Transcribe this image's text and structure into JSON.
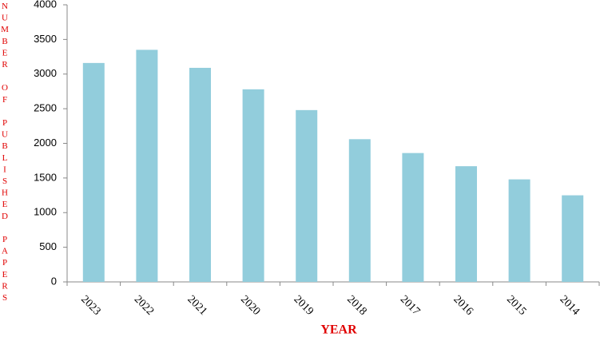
{
  "chart_data": {
    "type": "bar",
    "y_label": "NUMBER OF PUBLISHED PAPERS",
    "x_label": "YEAR",
    "categories": [
      "2023",
      "2022",
      "2021",
      "2020",
      "2019",
      "2018",
      "2017",
      "2016",
      "2015",
      "2014"
    ],
    "values": [
      3160,
      3350,
      3090,
      2780,
      2480,
      2060,
      1860,
      1670,
      1480,
      1250
    ],
    "color": "#92cddc",
    "ylim": [
      0,
      4000
    ],
    "yticks": [
      0,
      500,
      1000,
      1500,
      2000,
      2500,
      3000,
      3500,
      4000
    ],
    "grid": false
  }
}
